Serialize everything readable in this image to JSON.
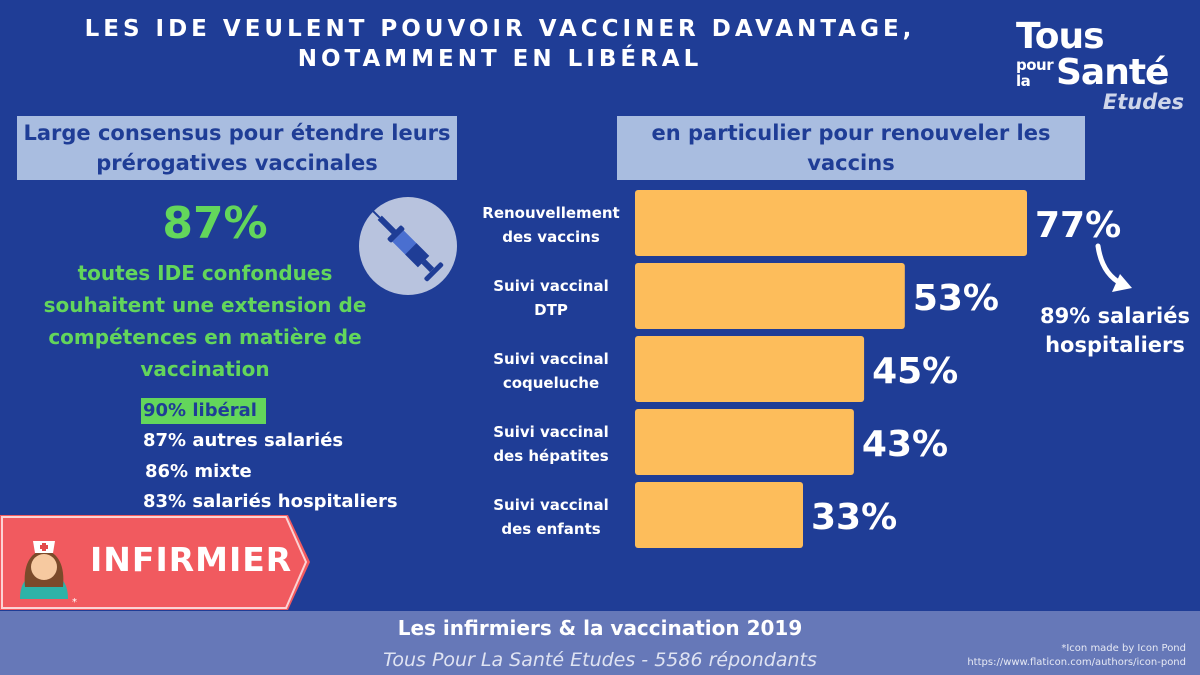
{
  "title_line1": "LES IDE VEULENT POUVOIR VACCINER DAVANTAGE,",
  "title_line2": "NOTAMMENT EN LIBÉRAL",
  "logo": {
    "line1": "Tous",
    "line2": "pour",
    "line3": "la",
    "line4": "Santé",
    "line5": "Etudes"
  },
  "left": {
    "header_line1": "Large consensus pour étendre leurs",
    "header_line2": "prérogatives vaccinales",
    "big_pct": "87%",
    "sub_lines": [
      "toutes IDE confondues",
      "souhaitent une extension de",
      "compétences en matière de",
      "vaccination"
    ],
    "breakdown": [
      "90% libéral",
      "87% autres salariés",
      "86% mixte",
      "83% salariés hospitaliers"
    ],
    "banner": "INFIRMIER",
    "banner_asterisk": "*"
  },
  "right": {
    "header_line1": "en particulier pour renouveler les",
    "header_line2": "vaccins",
    "note_line1": "89% salariés",
    "note_line2": "hospitaliers"
  },
  "chart_data": {
    "type": "bar",
    "orientation": "horizontal",
    "categories": [
      [
        "Renouvellement",
        "des vaccins"
      ],
      [
        "Suivi vaccinal",
        "DTP"
      ],
      [
        "Suivi vaccinal",
        "coqueluche"
      ],
      [
        "Suivi vaccinal",
        "des hépatites"
      ],
      [
        "Suivi vaccinal",
        "des enfants"
      ]
    ],
    "values": [
      77,
      53,
      45,
      43,
      33
    ],
    "value_labels": [
      "77%",
      "53%",
      "45%",
      "43%",
      "33%"
    ],
    "bar_color": "#fdbd5b",
    "xlim": [
      0,
      100
    ]
  },
  "footer": {
    "line1": "Les infirmiers & la vaccination 2019",
    "line2": "Tous Pour La Santé Etudes - 5586 répondants",
    "credit1": "*Icon made by Icon Pond",
    "credit2": "https://www.flaticon.com/authors/icon-pond"
  },
  "colors": {
    "background": "#1f3d96",
    "header_box": "#a9bde0",
    "green": "#63d65b",
    "bar": "#fdbd5b",
    "banner": "#f15a5f",
    "footer": "#6678b8"
  }
}
